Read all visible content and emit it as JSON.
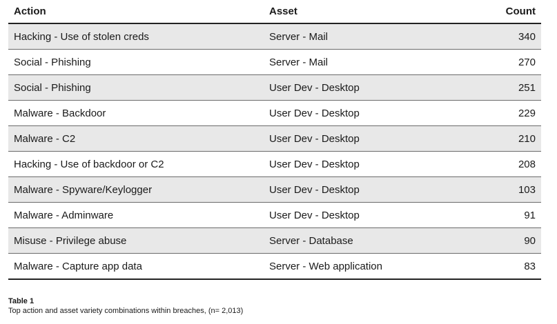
{
  "table": {
    "headers": {
      "action": "Action",
      "asset": "Asset",
      "count": "Count"
    },
    "rows": [
      {
        "action": "Hacking - Use of stolen creds",
        "asset": "Server - Mail",
        "count": "340"
      },
      {
        "action": "Social - Phishing",
        "asset": "Server - Mail",
        "count": "270"
      },
      {
        "action": "Social - Phishing",
        "asset": "User Dev - Desktop",
        "count": "251"
      },
      {
        "action": "Malware - Backdoor",
        "asset": "User Dev - Desktop",
        "count": "229"
      },
      {
        "action": "Malware - C2",
        "asset": "User Dev - Desktop",
        "count": "210"
      },
      {
        "action": "Hacking - Use of backdoor or C2",
        "asset": "User Dev - Desktop",
        "count": "208"
      },
      {
        "action": "Malware - Spyware/Keylogger",
        "asset": "User Dev - Desktop",
        "count": "103"
      },
      {
        "action": "Malware - Adminware",
        "asset": "User Dev - Desktop",
        "count": "91"
      },
      {
        "action": "Misuse - Privilege abuse",
        "asset": "Server - Database",
        "count": "90"
      },
      {
        "action": "Malware - Capture app data",
        "asset": "Server - Web application",
        "count": "83"
      }
    ]
  },
  "caption": {
    "title": "Table 1",
    "text": "Top action and asset variety combinations within breaches, (n= 2,013)"
  }
}
